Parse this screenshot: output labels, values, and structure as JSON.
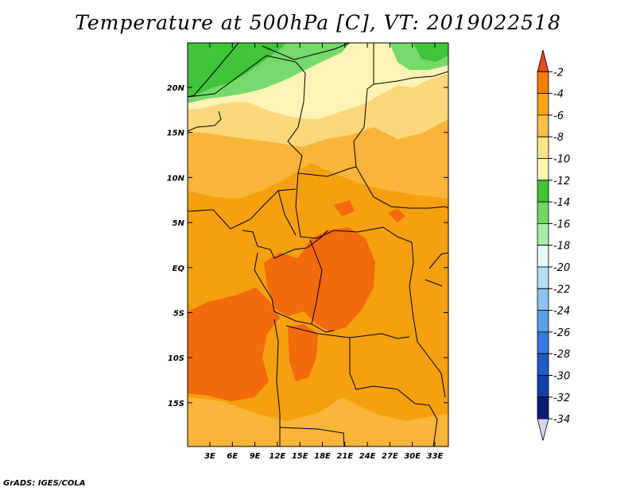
{
  "title": "Temperature at 500hPa [C], VT: 2019022518",
  "footer": "GrADS: IGES/COLA",
  "lat_labels": [
    "20N",
    "15N",
    "10N",
    "5N",
    "EQ",
    "5S",
    "10S",
    "15S"
  ],
  "lon_labels": [
    "3E",
    "6E",
    "9E",
    "12E",
    "15E",
    "18E",
    "21E",
    "24E",
    "27E",
    "30E",
    "33E"
  ],
  "colorbar": {
    "labels": [
      "-2",
      "-4",
      "-6",
      "-8",
      "-10",
      "-12",
      "-14",
      "-16",
      "-18",
      "-20",
      "-22",
      "-24",
      "-26",
      "-28",
      "-30",
      "-32",
      "-34"
    ],
    "colors": [
      "#e8491b",
      "#f27d0c",
      "#f7a31c",
      "#fbbf4a",
      "#fde38a",
      "#fdf6b6",
      "#3fc43a",
      "#6fd865",
      "#a8ebaa",
      "#e4f7f4",
      "#b7dcf7",
      "#8cc2f1",
      "#5c9ee7",
      "#3679dc",
      "#1e5bc8",
      "#123ea8",
      "#0a1b78",
      "#d8d4ef"
    ]
  },
  "map_colors": {
    "orange_dark": "#f26a0c",
    "orange": "#f5a00f",
    "orange_light": "#f9b53a",
    "yellow": "#fcd77c",
    "pale_yellow": "#fdf3b5",
    "green": "#3fc43a",
    "light_green": "#76d96c"
  }
}
